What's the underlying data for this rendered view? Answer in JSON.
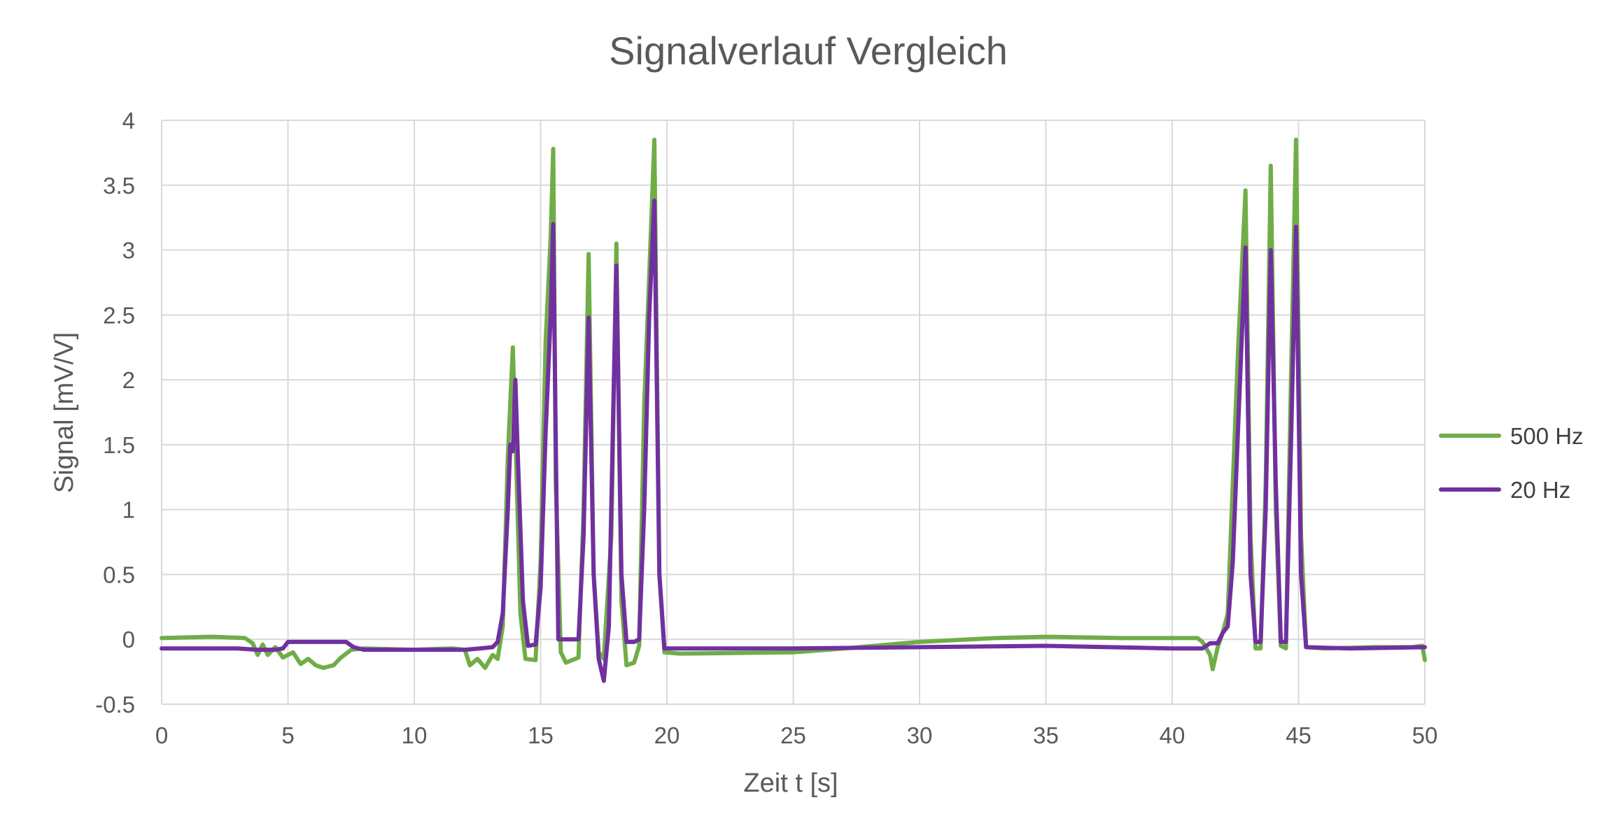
{
  "chart_data": {
    "type": "line",
    "title": "Signalverlauf Vergleich",
    "xlabel": "Zeit t [s]",
    "ylabel": "Signal [mV/V]",
    "xlim": [
      0,
      50
    ],
    "ylim": [
      -0.5,
      4
    ],
    "xticks": [
      0,
      5,
      10,
      15,
      20,
      25,
      30,
      35,
      40,
      45,
      50
    ],
    "yticks": [
      -0.5,
      0,
      0.5,
      1,
      1.5,
      2,
      2.5,
      3,
      3.5,
      4
    ],
    "xtick_labels": [
      "0",
      "5",
      "10",
      "15",
      "20",
      "25",
      "30",
      "35",
      "40",
      "45",
      "50"
    ],
    "ytick_labels": [
      "-0.5",
      "0",
      "0.5",
      "1",
      "1.5",
      "2",
      "2.5",
      "3",
      "3.5",
      "4"
    ],
    "grid": true,
    "legend_position": "right",
    "series": [
      {
        "name": "500 Hz",
        "color": "#70ad47",
        "points": [
          [
            0,
            0.01
          ],
          [
            2,
            0.02
          ],
          [
            3.3,
            0.01
          ],
          [
            3.6,
            -0.03
          ],
          [
            3.8,
            -0.12
          ],
          [
            4.0,
            -0.04
          ],
          [
            4.2,
            -0.12
          ],
          [
            4.5,
            -0.06
          ],
          [
            4.8,
            -0.14
          ],
          [
            5.2,
            -0.1
          ],
          [
            5.5,
            -0.19
          ],
          [
            5.8,
            -0.15
          ],
          [
            6.1,
            -0.2
          ],
          [
            6.4,
            -0.22
          ],
          [
            6.8,
            -0.2
          ],
          [
            7.1,
            -0.14
          ],
          [
            7.5,
            -0.08
          ],
          [
            8,
            -0.07
          ],
          [
            10,
            -0.08
          ],
          [
            11.5,
            -0.07
          ],
          [
            12.0,
            -0.08
          ],
          [
            12.2,
            -0.2
          ],
          [
            12.5,
            -0.15
          ],
          [
            12.8,
            -0.22
          ],
          [
            13.1,
            -0.12
          ],
          [
            13.3,
            -0.15
          ],
          [
            13.5,
            0.1
          ],
          [
            13.7,
            1.4
          ],
          [
            13.9,
            2.25
          ],
          [
            14.0,
            1.6
          ],
          [
            14.2,
            0.2
          ],
          [
            14.4,
            -0.15
          ],
          [
            14.8,
            -0.16
          ],
          [
            15.0,
            0.6
          ],
          [
            15.2,
            2.3
          ],
          [
            15.4,
            3.1
          ],
          [
            15.5,
            3.78
          ],
          [
            15.6,
            1.2
          ],
          [
            15.8,
            -0.1
          ],
          [
            16.0,
            -0.18
          ],
          [
            16.5,
            -0.14
          ],
          [
            16.7,
            1.0
          ],
          [
            16.9,
            2.97
          ],
          [
            17.1,
            0.5
          ],
          [
            17.3,
            -0.1
          ],
          [
            17.5,
            -0.15
          ],
          [
            17.8,
            0.8
          ],
          [
            18.0,
            3.05
          ],
          [
            18.2,
            0.3
          ],
          [
            18.4,
            -0.2
          ],
          [
            18.7,
            -0.18
          ],
          [
            18.9,
            -0.05
          ],
          [
            19.1,
            1.8
          ],
          [
            19.3,
            2.8
          ],
          [
            19.5,
            3.85
          ],
          [
            19.7,
            0.5
          ],
          [
            19.9,
            -0.1
          ],
          [
            20.5,
            -0.11
          ],
          [
            25,
            -0.1
          ],
          [
            27,
            -0.07
          ],
          [
            30,
            -0.02
          ],
          [
            33,
            0.01
          ],
          [
            35,
            0.02
          ],
          [
            38,
            0.01
          ],
          [
            41,
            0.01
          ],
          [
            41.2,
            -0.02
          ],
          [
            41.5,
            -0.12
          ],
          [
            41.6,
            -0.23
          ],
          [
            41.8,
            -0.06
          ],
          [
            42.0,
            0.05
          ],
          [
            42.2,
            0.2
          ],
          [
            42.4,
            1.2
          ],
          [
            42.6,
            2.2
          ],
          [
            42.9,
            3.46
          ],
          [
            43.1,
            0.8
          ],
          [
            43.3,
            -0.07
          ],
          [
            43.5,
            -0.07
          ],
          [
            43.7,
            1.2
          ],
          [
            43.9,
            3.65
          ],
          [
            44.1,
            1.0
          ],
          [
            44.3,
            -0.05
          ],
          [
            44.5,
            -0.07
          ],
          [
            44.7,
            2.0
          ],
          [
            44.9,
            3.85
          ],
          [
            45.1,
            0.8
          ],
          [
            45.3,
            -0.06
          ],
          [
            46,
            -0.07
          ],
          [
            48,
            -0.06
          ],
          [
            49.5,
            -0.06
          ],
          [
            49.9,
            -0.05
          ],
          [
            50,
            -0.16
          ]
        ]
      },
      {
        "name": "20 Hz",
        "color": "#7030a0",
        "points": [
          [
            0,
            -0.07
          ],
          [
            3,
            -0.07
          ],
          [
            3.8,
            -0.08
          ],
          [
            4.5,
            -0.08
          ],
          [
            4.8,
            -0.07
          ],
          [
            5.0,
            -0.02
          ],
          [
            5.3,
            -0.02
          ],
          [
            7.3,
            -0.02
          ],
          [
            7.6,
            -0.06
          ],
          [
            8.0,
            -0.08
          ],
          [
            10,
            -0.08
          ],
          [
            12.0,
            -0.08
          ],
          [
            12.6,
            -0.07
          ],
          [
            13.1,
            -0.06
          ],
          [
            13.3,
            -0.02
          ],
          [
            13.5,
            0.2
          ],
          [
            13.7,
            1.0
          ],
          [
            13.8,
            1.5
          ],
          [
            13.9,
            1.45
          ],
          [
            14.0,
            2.0
          ],
          [
            14.1,
            1.4
          ],
          [
            14.3,
            0.3
          ],
          [
            14.5,
            -0.05
          ],
          [
            14.8,
            -0.04
          ],
          [
            15.0,
            0.4
          ],
          [
            15.2,
            1.6
          ],
          [
            15.4,
            2.5
          ],
          [
            15.5,
            3.2
          ],
          [
            15.6,
            1.5
          ],
          [
            15.7,
            0.0
          ],
          [
            16.3,
            0.0
          ],
          [
            16.5,
            0.0
          ],
          [
            16.7,
            0.8
          ],
          [
            16.9,
            2.48
          ],
          [
            17.1,
            0.5
          ],
          [
            17.3,
            -0.15
          ],
          [
            17.5,
            -0.32
          ],
          [
            17.7,
            0.1
          ],
          [
            17.9,
            2.0
          ],
          [
            18.0,
            2.88
          ],
          [
            18.2,
            0.5
          ],
          [
            18.4,
            -0.02
          ],
          [
            18.7,
            -0.02
          ],
          [
            18.9,
            0.0
          ],
          [
            19.1,
            1.0
          ],
          [
            19.3,
            2.5
          ],
          [
            19.5,
            3.38
          ],
          [
            19.7,
            0.5
          ],
          [
            19.9,
            -0.07
          ],
          [
            25,
            -0.07
          ],
          [
            30,
            -0.06
          ],
          [
            35,
            -0.05
          ],
          [
            40,
            -0.07
          ],
          [
            41.2,
            -0.07
          ],
          [
            41.5,
            -0.03
          ],
          [
            41.8,
            -0.03
          ],
          [
            42.0,
            0.05
          ],
          [
            42.2,
            0.1
          ],
          [
            42.4,
            0.6
          ],
          [
            42.6,
            1.6
          ],
          [
            42.9,
            3.02
          ],
          [
            43.1,
            0.5
          ],
          [
            43.3,
            -0.02
          ],
          [
            43.5,
            -0.02
          ],
          [
            43.7,
            1.0
          ],
          [
            43.9,
            3.0
          ],
          [
            44.1,
            1.2
          ],
          [
            44.3,
            -0.02
          ],
          [
            44.5,
            -0.02
          ],
          [
            44.7,
            1.5
          ],
          [
            44.9,
            3.18
          ],
          [
            45.1,
            0.5
          ],
          [
            45.3,
            -0.06
          ],
          [
            47,
            -0.07
          ],
          [
            50,
            -0.06
          ]
        ]
      }
    ]
  }
}
